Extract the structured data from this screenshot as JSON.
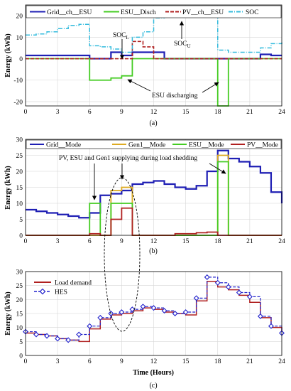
{
  "chart_data": [
    {
      "type": "line",
      "panel_label": "(a)",
      "xlabel": "",
      "ylabel": "Energy (kWh)",
      "xlim": [
        0,
        24
      ],
      "ylim": [
        -22,
        25
      ],
      "xticks": [
        "0",
        "3",
        "6",
        "9",
        "12",
        "15",
        "18",
        "21",
        "24"
      ],
      "yticks": [
        "-20",
        "-10",
        "0",
        "10",
        "20"
      ],
      "grid": true,
      "legend_position": "top",
      "series": [
        {
          "name": "Grid__ch__ESU",
          "color": "#1f1fb4",
          "step": [
            [
              0,
              1.5
            ],
            [
              1,
              1.5
            ],
            [
              2,
              1.5
            ],
            [
              3,
              1.5
            ],
            [
              4,
              1.5
            ],
            [
              5,
              1.5
            ],
            [
              6,
              0
            ],
            [
              7,
              0
            ],
            [
              8,
              3
            ],
            [
              9,
              1.5
            ],
            [
              10,
              3
            ],
            [
              11,
              3
            ],
            [
              12,
              3
            ],
            [
              13,
              0
            ],
            [
              14,
              0
            ],
            [
              15,
              0
            ],
            [
              16,
              0
            ],
            [
              17,
              0
            ],
            [
              18,
              0
            ],
            [
              19,
              0
            ],
            [
              20,
              0
            ],
            [
              21,
              0
            ],
            [
              22,
              2
            ],
            [
              23,
              1.5
            ],
            [
              24,
              1.5
            ]
          ]
        },
        {
          "name": "ESU__Disch",
          "color": "#44cc22",
          "step": [
            [
              0,
              0
            ],
            [
              1,
              0
            ],
            [
              2,
              0
            ],
            [
              3,
              0
            ],
            [
              4,
              0
            ],
            [
              5,
              0
            ],
            [
              6,
              -10
            ],
            [
              7,
              -10
            ],
            [
              8,
              -9
            ],
            [
              9,
              -8
            ],
            [
              10,
              0
            ],
            [
              11,
              0
            ],
            [
              12,
              0
            ],
            [
              13,
              0
            ],
            [
              14,
              0
            ],
            [
              15,
              0
            ],
            [
              16,
              0
            ],
            [
              17,
              0
            ],
            [
              18,
              -22
            ],
            [
              19,
              0
            ],
            [
              20,
              0
            ],
            [
              21,
              0
            ],
            [
              22,
              0
            ],
            [
              23,
              0
            ],
            [
              24,
              0
            ]
          ]
        },
        {
          "name": "PV__ch__ESU",
          "color": "#b02020",
          "step": [
            [
              0,
              0
            ],
            [
              1,
              0
            ],
            [
              2,
              0
            ],
            [
              3,
              0
            ],
            [
              4,
              0
            ],
            [
              5,
              0
            ],
            [
              6,
              0
            ],
            [
              7,
              0
            ],
            [
              8,
              0
            ],
            [
              9,
              0
            ],
            [
              10,
              8
            ],
            [
              11,
              5.5
            ],
            [
              12,
              0
            ],
            [
              13,
              0
            ],
            [
              14,
              0
            ],
            [
              15,
              0
            ],
            [
              16,
              0
            ],
            [
              17,
              0
            ],
            [
              18,
              0
            ],
            [
              19,
              0
            ],
            [
              20,
              0
            ],
            [
              21,
              0
            ],
            [
              22,
              0
            ],
            [
              23,
              0
            ],
            [
              24,
              0
            ]
          ]
        },
        {
          "name": "SOC",
          "color": "#33bbdd",
          "step": [
            [
              0,
              11
            ],
            [
              1,
              11.5
            ],
            [
              2,
              12.5
            ],
            [
              3,
              14
            ],
            [
              4,
              15.5
            ],
            [
              5,
              16
            ],
            [
              6,
              6
            ],
            [
              7,
              5.5
            ],
            [
              8,
              4.5
            ],
            [
              9,
              3
            ],
            [
              10,
              10
            ],
            [
              11,
              12.5
            ],
            [
              12,
              19
            ],
            [
              13,
              22
            ],
            [
              14,
              24
            ],
            [
              15,
              24
            ],
            [
              16,
              24
            ],
            [
              17,
              24
            ],
            [
              18,
              4
            ],
            [
              19,
              3
            ],
            [
              20,
              3
            ],
            [
              21,
              3
            ],
            [
              22,
              5
            ],
            [
              23,
              7
            ],
            [
              24,
              8
            ]
          ]
        }
      ],
      "annotations": [
        {
          "text": "SOC",
          "sub": "L"
        },
        {
          "text": "SOC",
          "sub": "U"
        },
        {
          "text": "ESU discharging"
        }
      ]
    },
    {
      "type": "line",
      "panel_label": "(b)",
      "xlabel": "",
      "ylabel": "Energy (kWh)",
      "xlim": [
        0,
        24
      ],
      "ylim": [
        0,
        30
      ],
      "xticks": [
        "0",
        "3",
        "6",
        "9",
        "12",
        "15",
        "18",
        "21",
        "24"
      ],
      "yticks": [
        "0",
        "5",
        "10",
        "15",
        "20",
        "25",
        "30"
      ],
      "grid": true,
      "legend_position": "top",
      "series": [
        {
          "name": "Grid__Mode",
          "color": "#1f1fb4",
          "step": [
            [
              0,
              8
            ],
            [
              1,
              7.5
            ],
            [
              2,
              7
            ],
            [
              3,
              6.5
            ],
            [
              4,
              6
            ],
            [
              5,
              5.5
            ],
            [
              6,
              7
            ],
            [
              7,
              12.5
            ],
            [
              8,
              13
            ],
            [
              9,
              14
            ],
            [
              10,
              16
            ],
            [
              11,
              16.5
            ],
            [
              12,
              17
            ],
            [
              13,
              16
            ],
            [
              14,
              15
            ],
            [
              15,
              14.5
            ],
            [
              16,
              15.5
            ],
            [
              17,
              20
            ],
            [
              18,
              26.5
            ],
            [
              19,
              24
            ],
            [
              20,
              23
            ],
            [
              21,
              21.5
            ],
            [
              22,
              19.5
            ],
            [
              23,
              13.5
            ],
            [
              24,
              10
            ]
          ]
        },
        {
          "name": "Gen1__Mode",
          "color": "#ddaa22",
          "step": [
            [
              0,
              0
            ],
            [
              1,
              0
            ],
            [
              2,
              0
            ],
            [
              3,
              0
            ],
            [
              4,
              0
            ],
            [
              5,
              0
            ],
            [
              6,
              0
            ],
            [
              7,
              0
            ],
            [
              8,
              14
            ],
            [
              9,
              15
            ],
            [
              10,
              0
            ],
            [
              11,
              0
            ],
            [
              12,
              0
            ],
            [
              13,
              0
            ],
            [
              14,
              0
            ],
            [
              15,
              0
            ],
            [
              16,
              0
            ],
            [
              17,
              0
            ],
            [
              18,
              25
            ],
            [
              19,
              0
            ],
            [
              20,
              0
            ],
            [
              21,
              0
            ],
            [
              22,
              0
            ],
            [
              23,
              0
            ],
            [
              24,
              0
            ]
          ]
        },
        {
          "name": "ESU__Mode",
          "color": "#44cc22",
          "step": [
            [
              0,
              0
            ],
            [
              1,
              0
            ],
            [
              2,
              0
            ],
            [
              3,
              0
            ],
            [
              4,
              0
            ],
            [
              5,
              0
            ],
            [
              6,
              10
            ],
            [
              7,
              0
            ],
            [
              8,
              10
            ],
            [
              9,
              10
            ],
            [
              10,
              0
            ],
            [
              11,
              0
            ],
            [
              12,
              0
            ],
            [
              13,
              0
            ],
            [
              14,
              0
            ],
            [
              15,
              0
            ],
            [
              16,
              0
            ],
            [
              17,
              0
            ],
            [
              18,
              23
            ],
            [
              19,
              0
            ],
            [
              20,
              0
            ],
            [
              21,
              0
            ],
            [
              22,
              0
            ],
            [
              23,
              0
            ],
            [
              24,
              0
            ]
          ]
        },
        {
          "name": "PV__Mode",
          "color": "#b02020",
          "step": [
            [
              0,
              0
            ],
            [
              1,
              0
            ],
            [
              2,
              0
            ],
            [
              3,
              0
            ],
            [
              4,
              0
            ],
            [
              5,
              0
            ],
            [
              6,
              0.5
            ],
            [
              7,
              0
            ],
            [
              8,
              5
            ],
            [
              9,
              8.5
            ],
            [
              10,
              0
            ],
            [
              11,
              0
            ],
            [
              12,
              0
            ],
            [
              13,
              0
            ],
            [
              14,
              0.5
            ],
            [
              15,
              0.5
            ],
            [
              16,
              0.8
            ],
            [
              17,
              1
            ],
            [
              18,
              0
            ],
            [
              19,
              0
            ],
            [
              20,
              0
            ],
            [
              21,
              0
            ],
            [
              22,
              0
            ],
            [
              23,
              0
            ],
            [
              24,
              0
            ]
          ]
        }
      ],
      "annotations": [
        {
          "text": "PV, ESU and Gen1 supplying during load shedding"
        }
      ]
    },
    {
      "type": "line",
      "panel_label": "(c)",
      "xlabel": "Time (Hours)",
      "ylabel": "Energy (kWh)",
      "xlim": [
        0,
        24
      ],
      "ylim": [
        0,
        30
      ],
      "xticks": [
        "0",
        "3",
        "6",
        "9",
        "12",
        "15",
        "18",
        "21",
        "24"
      ],
      "yticks": [
        "0",
        "5",
        "10",
        "15",
        "20",
        "25",
        "30"
      ],
      "grid": true,
      "legend_position": "top-left",
      "series": [
        {
          "name": "Load demand",
          "color": "#b02020",
          "step": [
            [
              0,
              8
            ],
            [
              1,
              7.5
            ],
            [
              2,
              7
            ],
            [
              3,
              6
            ],
            [
              4,
              5.5
            ],
            [
              5,
              5
            ],
            [
              6,
              9.5
            ],
            [
              7,
              13
            ],
            [
              8,
              14.5
            ],
            [
              9,
              15
            ],
            [
              10,
              16
            ],
            [
              11,
              17
            ],
            [
              12,
              16.5
            ],
            [
              13,
              15.5
            ],
            [
              14,
              15
            ],
            [
              15,
              14.5
            ],
            [
              16,
              19.5
            ],
            [
              17,
              26.5
            ],
            [
              18,
              24.5
            ],
            [
              19,
              23.5
            ],
            [
              20,
              21.5
            ],
            [
              21,
              19
            ],
            [
              22,
              13.5
            ],
            [
              23,
              10
            ],
            [
              24,
              8
            ]
          ]
        },
        {
          "name": "HES",
          "color": "#2222cc",
          "marker": "diamond",
          "step": [
            [
              0,
              8.5
            ],
            [
              1,
              7.5
            ],
            [
              2,
              7
            ],
            [
              3,
              6
            ],
            [
              4,
              5.5
            ],
            [
              5,
              7.5
            ],
            [
              6,
              10.5
            ],
            [
              7,
              13.5
            ],
            [
              8,
              15
            ],
            [
              9,
              15.5
            ],
            [
              10,
              16.5
            ],
            [
              11,
              17.5
            ],
            [
              12,
              17
            ],
            [
              13,
              16
            ],
            [
              14,
              15
            ],
            [
              15,
              15.5
            ],
            [
              16,
              20.5
            ],
            [
              17,
              28
            ],
            [
              18,
              26
            ],
            [
              19,
              24.5
            ],
            [
              20,
              22.5
            ],
            [
              21,
              21
            ],
            [
              22,
              14
            ],
            [
              23,
              10.5
            ],
            [
              24,
              8
            ]
          ]
        }
      ]
    }
  ]
}
